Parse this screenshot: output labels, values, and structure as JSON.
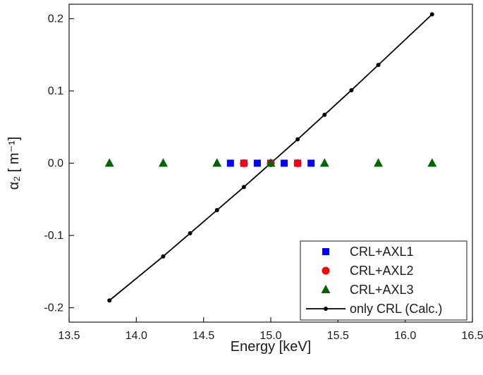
{
  "chart_data": {
    "type": "scatter",
    "xlabel": "Energy [keV]",
    "ylabel": "α₂ [ m⁻¹]",
    "xlim": [
      13.5,
      16.5
    ],
    "ylim": [
      -0.22,
      0.22
    ],
    "x_ticks": [
      13.5,
      14.0,
      14.5,
      15.0,
      15.5,
      16.0,
      16.5
    ],
    "y_ticks": [
      -0.2,
      -0.1,
      0.0,
      0.1,
      0.2
    ],
    "x_tick_labels": [
      "13.5",
      "14.0",
      "14.5",
      "15.0",
      "15.5",
      "16.0",
      "16.5"
    ],
    "y_tick_labels": [
      "-0.2",
      "-0.1",
      "0.0",
      "0.1",
      "0.2"
    ],
    "grid": false,
    "legend_position": "bottom-right",
    "series": [
      {
        "name": "CRL+AXL1",
        "marker": "square",
        "color": "#0000ff",
        "x": [
          14.7,
          14.8,
          14.9,
          15.0,
          15.1,
          15.2,
          15.3
        ],
        "y": [
          0,
          0,
          0,
          0,
          0,
          0,
          0
        ]
      },
      {
        "name": "CRL+AXL2",
        "marker": "circle",
        "color": "#ff0000",
        "x": [
          14.8,
          15.0,
          15.2
        ],
        "y": [
          0,
          0,
          0
        ]
      },
      {
        "name": "CRL+AXL3",
        "marker": "triangle",
        "color": "#006400",
        "x": [
          13.8,
          14.2,
          14.6,
          15.0,
          15.4,
          15.8,
          16.2
        ],
        "y": [
          0,
          0,
          0,
          0,
          0,
          0,
          0
        ]
      },
      {
        "name": "only CRL (Calc.)",
        "marker": "dot-line",
        "color": "#000000",
        "x": [
          13.8,
          14.2,
          14.4,
          14.6,
          14.8,
          15.0,
          15.2,
          15.4,
          15.6,
          15.8,
          16.2
        ],
        "y": [
          -0.19,
          -0.129,
          -0.097,
          -0.065,
          -0.033,
          0.0,
          0.033,
          0.067,
          0.101,
          0.136,
          0.206
        ]
      }
    ]
  }
}
